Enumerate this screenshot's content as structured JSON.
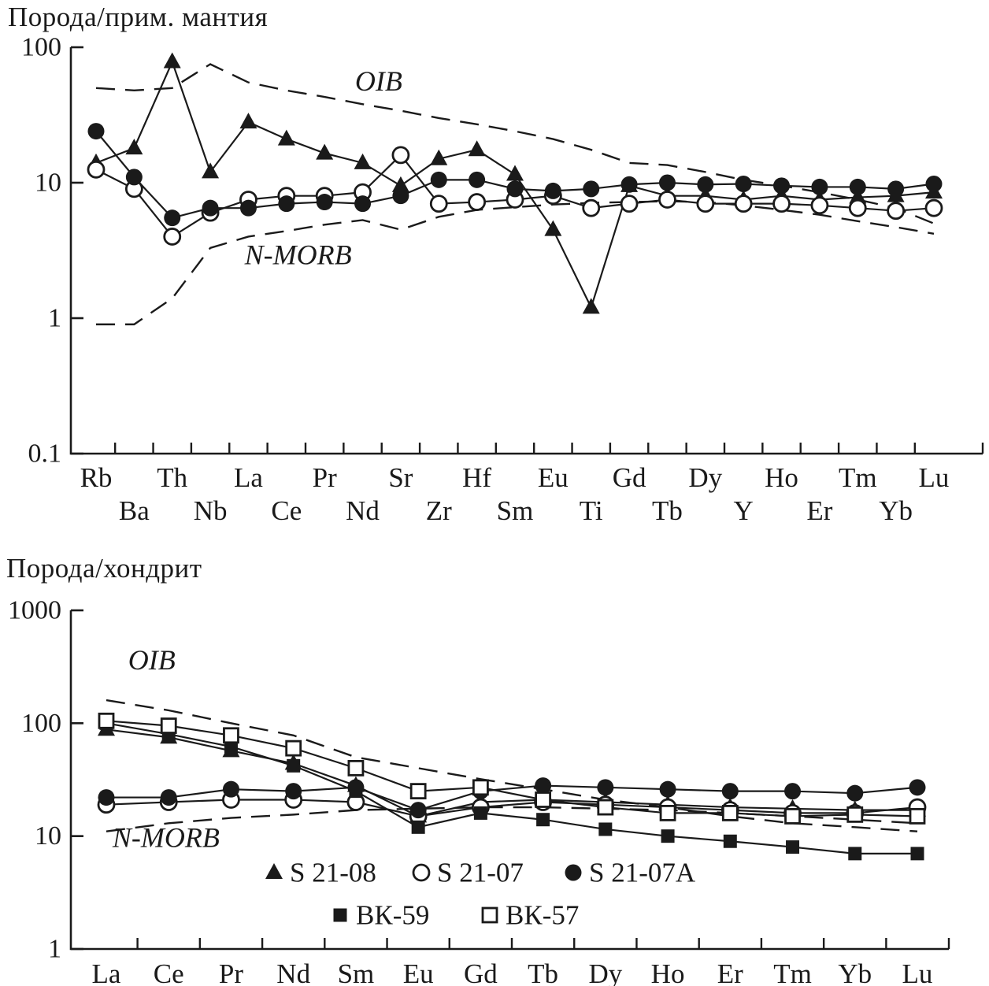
{
  "page": {
    "ink": "#1a1a1a",
    "background": "#ffffff"
  },
  "chart_data": [
    {
      "type": "line",
      "title": "Порода/прим. мантия",
      "y_scale": "log",
      "ylim": [
        0.1,
        100
      ],
      "grid": "off",
      "y_ticks": [
        {
          "v": 100,
          "label": "100"
        },
        {
          "v": 10,
          "label": "10"
        },
        {
          "v": 1,
          "label": "1"
        },
        {
          "v": 0.1,
          "label": "0.1"
        }
      ],
      "two_row_x_labels": true,
      "categories": [
        "Rb",
        "Ba",
        "Th",
        "Nb",
        "La",
        "Ce",
        "Pr",
        "Nd",
        "Sr",
        "Zr",
        "Hf",
        "Sm",
        "Eu",
        "Ti",
        "Gd",
        "Tb",
        "Dy",
        "Y",
        "Ho",
        "Er",
        "Tm",
        "Yb",
        "Lu"
      ],
      "references": [
        {
          "name": "OIB",
          "style": "dashed",
          "values": [
            50,
            48,
            50,
            75,
            55,
            48,
            43,
            38,
            34,
            30,
            27,
            24,
            21,
            17.5,
            14,
            13.5,
            12,
            10.5,
            9.5,
            8.5,
            7.5,
            6.5,
            5
          ],
          "label_at": {
            "x": 6.8,
            "y": 48
          }
        },
        {
          "name": "N-MORB",
          "style": "dashed",
          "values": [
            0.9,
            0.9,
            1.4,
            3.3,
            4,
            4.4,
            4.9,
            5.3,
            4.5,
            5.6,
            6.3,
            6.6,
            6.9,
            7.1,
            7.2,
            7.3,
            7.2,
            6.8,
            6.3,
            5.8,
            5.2,
            4.7,
            4.2
          ],
          "label_at": {
            "x": 3.9,
            "y": 2.5
          }
        }
      ],
      "series": [
        {
          "name": "S 21-08",
          "marker": "triangle-filled",
          "values": [
            14,
            18,
            78,
            12,
            28,
            21,
            16.5,
            14,
            9.5,
            15,
            17.5,
            11.5,
            4.5,
            1.2,
            9.5,
            8,
            8,
            7.5,
            8,
            7.5,
            7.8,
            8,
            8.5
          ]
        },
        {
          "name": "S 21-07",
          "marker": "circle-open",
          "values": [
            12.5,
            9,
            4,
            6,
            7.5,
            8,
            8,
            8.5,
            16,
            7,
            7.2,
            7.5,
            8,
            6.5,
            7,
            7.5,
            7,
            7,
            7,
            6.8,
            6.5,
            6.2,
            6.5
          ]
        },
        {
          "name": "S 21-07A",
          "marker": "circle-filled",
          "values": [
            24,
            11,
            5.5,
            6.5,
            6.5,
            7,
            7.2,
            7,
            8,
            10.5,
            10.5,
            9,
            8.7,
            9,
            9.7,
            10,
            9.7,
            9.8,
            9.5,
            9.3,
            9.3,
            9,
            9.8
          ]
        }
      ]
    },
    {
      "type": "line",
      "title": "Порода/хондрит",
      "y_scale": "log",
      "ylim": [
        1,
        1000
      ],
      "grid": "off",
      "y_ticks": [
        {
          "v": 1000,
          "label": "1000"
        },
        {
          "v": 100,
          "label": "100"
        },
        {
          "v": 10,
          "label": "10"
        },
        {
          "v": 1,
          "label": "1"
        }
      ],
      "two_row_x_labels": false,
      "categories": [
        "La",
        "Ce",
        "Pr",
        "Nd",
        "Sm",
        "Eu",
        "Gd",
        "Tb",
        "Dy",
        "Ho",
        "Er",
        "Tm",
        "Yb",
        "Lu"
      ],
      "references": [
        {
          "name": "OIB",
          "style": "dashed",
          "values": [
            160,
            130,
            100,
            78,
            50,
            40,
            32,
            26,
            21,
            18,
            15,
            13,
            12,
            11
          ],
          "label_at": {
            "x": 0.35,
            "y": 300
          }
        },
        {
          "name": "N-MORB",
          "style": "dashed",
          "values": [
            11,
            13,
            14.5,
            15.5,
            17,
            17.5,
            18,
            18,
            17.5,
            17,
            16,
            15,
            14,
            13
          ],
          "label_at": {
            "x": 0.1,
            "y": 8
          }
        }
      ],
      "series": [
        {
          "name": "S 21-08",
          "marker": "triangle-filled",
          "values": [
            88,
            75,
            57,
            44,
            28,
            15,
            20,
            21,
            20,
            19,
            18,
            17.5,
            17,
            17
          ]
        },
        {
          "name": "S 21-07",
          "marker": "circle-open",
          "values": [
            19,
            20,
            21,
            21,
            20,
            15,
            18,
            20,
            19,
            18,
            17,
            16,
            16,
            18
          ]
        },
        {
          "name": "S 21-07A",
          "marker": "circle-filled",
          "values": [
            22,
            22,
            26,
            25,
            27,
            17,
            25,
            28,
            27,
            26,
            25,
            25,
            24,
            27
          ]
        },
        {
          "name": "ВК-59",
          "marker": "square-filled",
          "values": [
            100,
            80,
            62,
            42,
            25,
            12,
            16,
            14,
            11.5,
            10,
            9,
            8,
            7,
            7
          ]
        },
        {
          "name": "ВК-57",
          "marker": "square-open",
          "values": [
            105,
            95,
            78,
            60,
            40,
            25,
            27,
            21,
            18,
            16,
            16,
            15,
            15.5,
            15
          ]
        }
      ],
      "legend": {
        "rows": [
          [
            {
              "marker": "triangle-filled",
              "label": "S 21-08"
            },
            {
              "marker": "circle-open",
              "label": "S 21-07"
            },
            {
              "marker": "circle-filled",
              "label": "S 21-07A"
            }
          ],
          [
            {
              "marker": "square-filled",
              "label": "ВК-59"
            },
            {
              "marker": "square-open",
              "label": "ВК-57"
            }
          ]
        ]
      }
    }
  ]
}
